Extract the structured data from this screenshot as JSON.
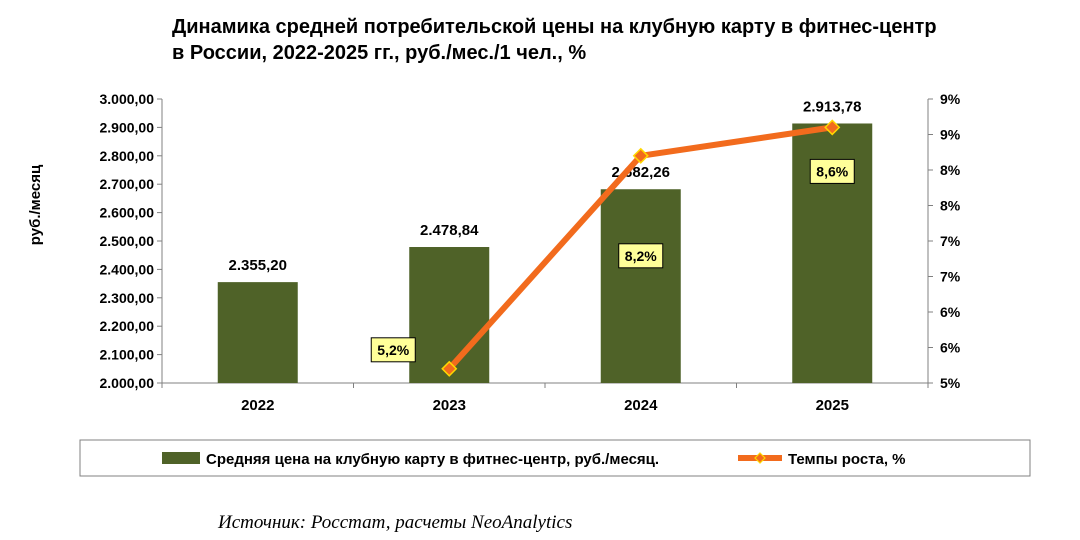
{
  "title_line1": "Динамика средней потребительской цены на клубную карту в фитнес-центр",
  "title_line2": "в России, 2022-2025 гг., руб./мес./1 чел., %",
  "source": "Источник: Росстат, расчеты NeoAnalytics",
  "colors": {
    "bar": "#4f6228",
    "line": "#f26b1d",
    "marker_fill": "#f26b1d",
    "marker_stroke": "#ffd700",
    "label_box": "#ffff99"
  },
  "chart_data": {
    "type": "bar",
    "categories": [
      "2022",
      "2023",
      "2024",
      "2025"
    ],
    "ylabel": "руб./месяц",
    "ylim": [
      2000,
      3000
    ],
    "y2lim": [
      5,
      9
    ],
    "y_ticks": [
      "2.000,00",
      "2.100,00",
      "2.200,00",
      "2.300,00",
      "2.400,00",
      "2.500,00",
      "2.600,00",
      "2.700,00",
      "2.800,00",
      "2.900,00",
      "3.000,00"
    ],
    "y2_ticks": [
      "5%",
      "6%",
      "6%",
      "7%",
      "7%",
      "8%",
      "8%",
      "9%",
      "9%"
    ],
    "series": [
      {
        "name": "Средняя цена на клубную карту в фитнес-центр, руб./месяц.",
        "type": "bar",
        "values": [
          2355.2,
          2478.84,
          2682.26,
          2913.78
        ],
        "labels": [
          "2.355,20",
          "2.478,84",
          "2.682,26",
          "2.913,78"
        ]
      },
      {
        "name": "Темпы роста, %",
        "type": "line",
        "axis": "secondary",
        "values": [
          null,
          5.2,
          8.2,
          8.6
        ],
        "labels": [
          "",
          "5,2%",
          "8,2%",
          "8,6%"
        ]
      }
    ],
    "legend_position": "bottom",
    "grid": false
  }
}
